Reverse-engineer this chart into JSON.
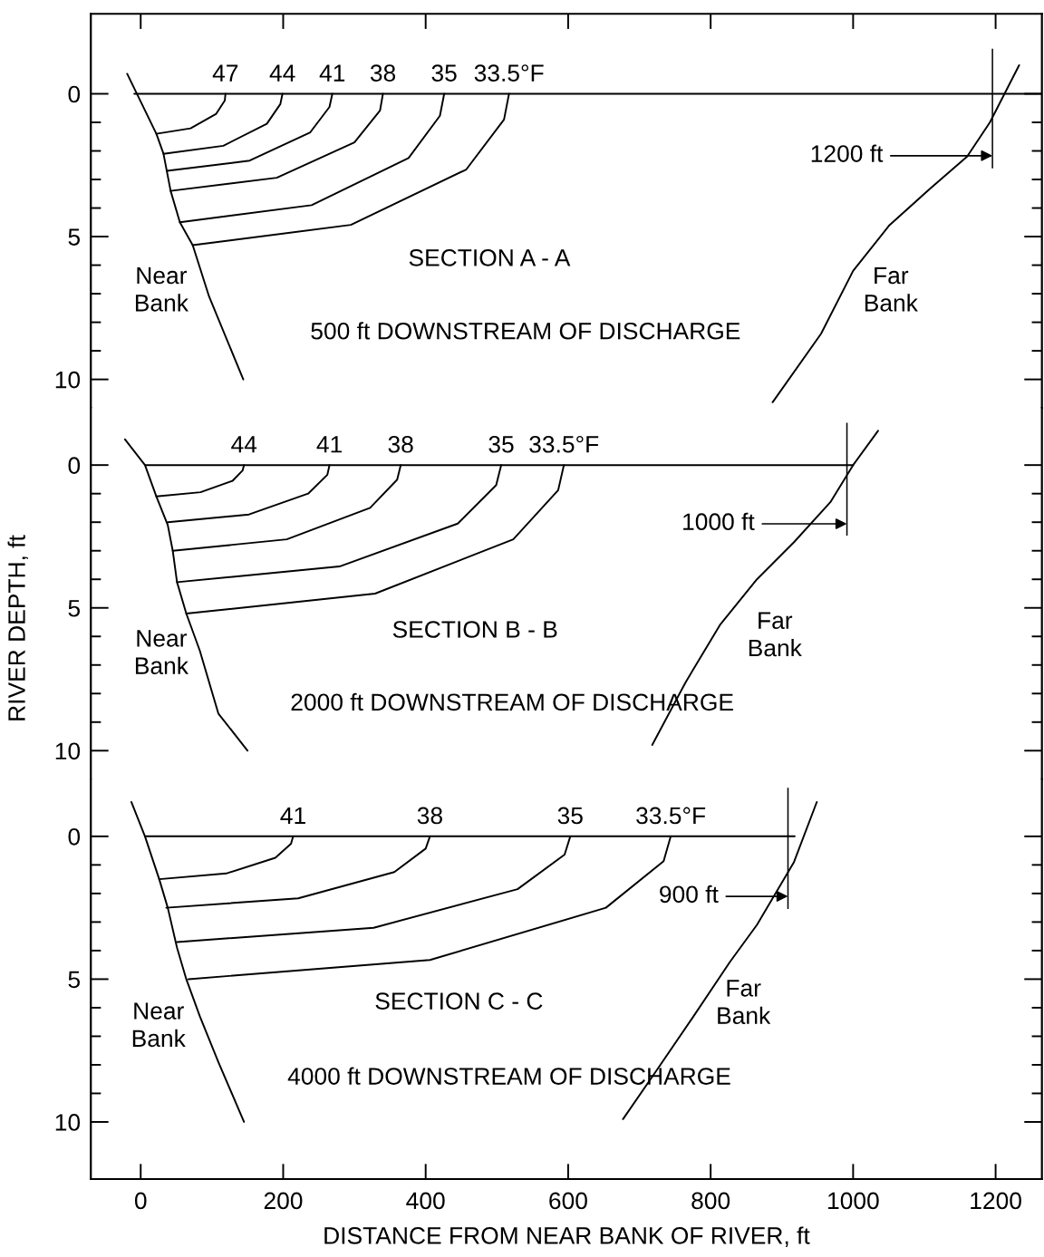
{
  "chart_data": [
    {
      "type": "line",
      "title": "SECTION A - A",
      "subtitle": "500 ft DOWNSTREAM OF DISCHARGE",
      "xlim": [
        -70,
        1265
      ],
      "xticks": [
        0,
        200,
        400,
        600,
        800,
        1000,
        1200
      ],
      "ylim": [
        11,
        -2.8
      ],
      "yticks": [
        0,
        {
          "value": 1,
          "label": null
        },
        {
          "value": 2,
          "label": null
        },
        {
          "value": 3,
          "label": null
        },
        {
          "value": 4,
          "label": null
        },
        5,
        {
          "value": 6,
          "label": null
        },
        {
          "value": 7,
          "label": null
        },
        {
          "value": 8,
          "label": null
        },
        {
          "value": 9,
          "label": null
        },
        10
      ],
      "tick_labels": "y",
      "grid": false,
      "legend": false,
      "series": [
        {
          "color": "#000000",
          "x": [
            -19,
            22,
            32,
            42,
            55,
            73,
            96,
            144
          ],
          "values": [
            -0.7,
            1.4,
            2.1,
            3.4,
            4.5,
            5.3,
            7.1,
            10.0
          ]
        },
        {
          "color": "#000000",
          "x": [
            887,
            955,
            1000,
            1051,
            1109,
            1160,
            1192,
            1233
          ],
          "values": [
            10.8,
            8.4,
            6.2,
            4.6,
            3.3,
            2.2,
            1.0,
            -1.0
          ]
        },
        {
          "color": "#000000",
          "x": [
            -9,
            1265
          ],
          "values": [
            0,
            0
          ]
        },
        {
          "name": "47",
          "color": "#000000",
          "x": [
            22,
            70,
            106,
            118,
            119
          ],
          "values": [
            1.4,
            1.21,
            0.7,
            0.24,
            0
          ]
        },
        {
          "name": "44",
          "color": "#000000",
          "x": [
            32,
            116,
            177,
            196,
            199
          ],
          "values": [
            2.1,
            1.82,
            1.05,
            0.36,
            0
          ]
        },
        {
          "name": "41",
          "color": "#000000",
          "x": [
            37,
            153,
            238,
            265,
            269
          ],
          "values": [
            2.7,
            2.34,
            1.35,
            0.46,
            0
          ]
        },
        {
          "name": "38",
          "color": "#000000",
          "x": [
            42,
            191,
            300,
            336,
            340
          ],
          "values": [
            3.4,
            2.94,
            1.7,
            0.58,
            0
          ]
        },
        {
          "name": "35",
          "color": "#000000",
          "x": [
            55,
            240,
            376,
            420,
            426
          ],
          "values": [
            4.5,
            3.9,
            2.25,
            0.77,
            0
          ]
        },
        {
          "name": "33.5°F",
          "color": "#000000",
          "x": [
            73,
            295,
            457,
            510,
            517
          ],
          "values": [
            5.3,
            4.59,
            2.65,
            0.9,
            0
          ]
        }
      ],
      "annotations": [
        "Near\nBank",
        "Far\nBank",
        "1200 ft"
      ]
    },
    {
      "type": "line",
      "title": "SECTION B - B",
      "subtitle": "2000 ft DOWNSTREAM OF DISCHARGE",
      "ylabel": "RIVER DEPTH, ft",
      "xlim": [
        -70,
        1265
      ],
      "xticks": [
        0,
        200,
        400,
        600,
        800,
        1000,
        1200
      ],
      "ylim": [
        11,
        -2
      ],
      "yticks": [
        0,
        {
          "value": 1,
          "label": null
        },
        {
          "value": 2,
          "label": null
        },
        {
          "value": 3,
          "label": null
        },
        {
          "value": 4,
          "label": null
        },
        5,
        {
          "value": 6,
          "label": null
        },
        {
          "value": 7,
          "label": null
        },
        {
          "value": 8,
          "label": null
        },
        {
          "value": 9,
          "label": null
        },
        10
      ],
      "tick_labels": "y",
      "grid": false,
      "legend": false,
      "series": [
        {
          "color": "#000000",
          "x": [
            -22,
            6,
            22,
            38,
            45,
            51,
            64,
            83,
            109,
            150
          ],
          "values": [
            -0.9,
            0,
            1.1,
            2.1,
            3.0,
            4.1,
            5.2,
            6.5,
            8.7,
            10.0
          ]
        },
        {
          "color": "#000000",
          "x": [
            718,
            765,
            813,
            865,
            917,
            968,
            1000,
            1035
          ],
          "values": [
            9.8,
            7.6,
            5.6,
            4.0,
            2.7,
            1.3,
            0,
            -1.2
          ]
        },
        {
          "color": "#000000",
          "x": [
            6,
            1000
          ],
          "values": [
            0,
            0
          ]
        },
        {
          "name": "44",
          "color": "#000000",
          "x": [
            22,
            84,
            129,
            143,
            145
          ],
          "values": [
            1.1,
            0.95,
            0.55,
            0.19,
            0
          ]
        },
        {
          "name": "41",
          "color": "#000000",
          "x": [
            38,
            152,
            235,
            262,
            265
          ],
          "values": [
            2.0,
            1.73,
            1.0,
            0.34,
            0
          ]
        },
        {
          "name": "38",
          "color": "#000000",
          "x": [
            45,
            205,
            322,
            360,
            365
          ],
          "values": [
            3.0,
            2.6,
            1.5,
            0.51,
            0
          ]
        },
        {
          "name": "35",
          "color": "#000000",
          "x": [
            51,
            279,
            445,
            499,
            506
          ],
          "values": [
            4.1,
            3.55,
            2.05,
            0.7,
            0
          ]
        },
        {
          "name": "33.5°F",
          "color": "#000000",
          "x": [
            64,
            329,
            523,
            586,
            594
          ],
          "values": [
            5.2,
            4.5,
            2.6,
            0.88,
            0
          ]
        }
      ],
      "annotations": [
        "Near\nBank",
        "Far\nBank",
        "1000 ft"
      ]
    },
    {
      "type": "line",
      "title": "SECTION C - C",
      "subtitle": "4000 ft DOWNSTREAM OF DISCHARGE",
      "xlabel": "DISTANCE FROM NEAR BANK OF RIVER, ft",
      "xlim": [
        -70,
        1265
      ],
      "xticks": [
        0,
        200,
        400,
        600,
        800,
        1000,
        1200
      ],
      "ylim": [
        12,
        -2
      ],
      "yticks": [
        0,
        {
          "value": 1,
          "label": null
        },
        {
          "value": 2,
          "label": null
        },
        {
          "value": 3,
          "label": null
        },
        {
          "value": 4,
          "label": null
        },
        5,
        {
          "value": 6,
          "label": null
        },
        {
          "value": 7,
          "label": null
        },
        {
          "value": 8,
          "label": null
        },
        {
          "value": 9,
          "label": null
        },
        10
      ],
      "grid": false,
      "legend": false,
      "series": [
        {
          "color": "#000000",
          "x": [
            -13,
            6,
            26,
            38,
            51,
            64,
            83,
            109,
            145
          ],
          "values": [
            -1.2,
            0,
            1.5,
            2.5,
            3.9,
            5.0,
            6.3,
            7.9,
            10.0
          ]
        },
        {
          "color": "#000000",
          "x": [
            677,
            724,
            776,
            827,
            865,
            917,
            949
          ],
          "values": [
            9.9,
            8.2,
            6.3,
            4.4,
            3.1,
            0.9,
            -1.2
          ]
        },
        {
          "color": "#000000",
          "x": [
            6,
            918
          ],
          "values": [
            0,
            0
          ]
        },
        {
          "name": "41",
          "color": "#000000",
          "x": [
            26,
            120,
            189,
            211,
            214
          ],
          "values": [
            1.5,
            1.3,
            0.75,
            0.26,
            0
          ]
        },
        {
          "name": "38",
          "color": "#000000",
          "x": [
            36,
            221,
            356,
            400,
            406
          ],
          "values": [
            2.5,
            2.17,
            1.25,
            0.43,
            0
          ]
        },
        {
          "name": "35",
          "color": "#000000",
          "x": [
            51,
            327,
            529,
            595,
            603
          ],
          "values": [
            3.7,
            3.2,
            1.85,
            0.64,
            0
          ]
        },
        {
          "name": "33.5°F",
          "color": "#000000",
          "x": [
            67,
            406,
            653,
            734,
            744
          ],
          "values": [
            5.0,
            4.33,
            2.5,
            0.87,
            0
          ]
        }
      ],
      "annotations": [
        "Near\nBank",
        "Far\nBank",
        "900 ft"
      ]
    }
  ]
}
